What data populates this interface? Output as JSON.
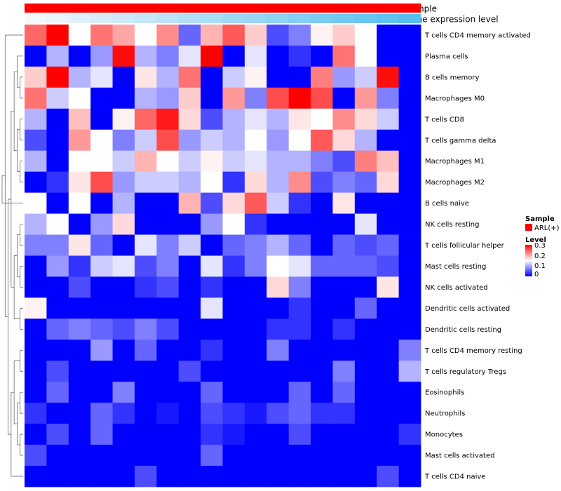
{
  "chart_data": {
    "type": "heatmap",
    "annotations": [
      {
        "name": "Sample",
        "gradient": [
          "#ff0000",
          "#ff0000"
        ]
      },
      {
        "name": "Gene expression level",
        "gradient": [
          "#f4f7fb",
          "#56bff0"
        ]
      }
    ],
    "rows": [
      "T cells CD4 memory activated",
      "Plasma cells",
      "B cells memory",
      "Macrophages M0",
      "T cells CD8",
      "T cells gamma delta",
      "Macrophages M1",
      "Macrophages M2",
      "B cells naive",
      "NK cells resting",
      "T cells follicular helper",
      "Mast cells resting",
      "NK cells activated",
      "Dendritic cells activated",
      "Dendritic cells resting",
      "T cells CD4 memory resting",
      "T cells regulatory  Tregs",
      "Eosinophils",
      "Neutrophils",
      "Monocytes",
      "Mast cells activated",
      "T cells CD4 naive"
    ],
    "n_columns": 18,
    "values": [
      [
        0.22,
        0.3,
        0.1,
        0.21,
        0.17,
        0.1,
        0.19,
        0.04,
        0.16,
        0.23,
        0.14,
        0.03,
        0.05,
        0.11,
        0.14,
        0.1,
        0.0,
        0.0
      ],
      [
        0.0,
        0.07,
        0.0,
        0.06,
        0.29,
        0.07,
        0.05,
        0.09,
        0.3,
        0.0,
        0.09,
        0.0,
        0.02,
        0.0,
        0.21,
        0.1,
        0.0,
        0.0
      ],
      [
        0.14,
        0.3,
        0.07,
        0.09,
        0.0,
        0.12,
        0.07,
        0.21,
        0.0,
        0.08,
        0.11,
        0.0,
        0.0,
        0.2,
        0.06,
        0.08,
        0.29,
        0.0
      ],
      [
        0.21,
        0.08,
        0.1,
        0.0,
        0.0,
        0.07,
        0.06,
        0.14,
        0.0,
        0.18,
        0.05,
        0.24,
        0.3,
        0.24,
        0.0,
        0.18,
        0.05,
        0.0
      ],
      [
        0.07,
        0.0,
        0.15,
        0.0,
        0.11,
        0.22,
        0.28,
        0.13,
        0.03,
        0.07,
        0.09,
        0.07,
        0.12,
        0.1,
        0.19,
        0.13,
        0.08,
        0.0
      ],
      [
        0.03,
        0.0,
        0.18,
        0.1,
        0.05,
        0.08,
        0.24,
        0.06,
        0.08,
        0.07,
        0.1,
        0.06,
        0.1,
        0.23,
        0.13,
        0.07,
        0.0,
        0.0
      ],
      [
        0.07,
        0.0,
        0.1,
        0.1,
        0.08,
        0.16,
        0.1,
        0.08,
        0.11,
        0.08,
        0.09,
        0.07,
        0.07,
        0.05,
        0.03,
        0.2,
        0.15,
        0.0
      ],
      [
        0.0,
        0.02,
        0.12,
        0.24,
        0.06,
        0.08,
        0.08,
        0.07,
        0.1,
        0.02,
        0.13,
        0.07,
        0.19,
        0.03,
        0.05,
        0.04,
        0.13,
        0.0
      ],
      [
        0.1,
        0.0,
        0.1,
        0.0,
        0.07,
        0.0,
        0.0,
        0.16,
        0.03,
        0.13,
        0.23,
        0.08,
        0.02,
        0.0,
        0.12,
        0.0,
        0.0,
        0.0
      ],
      [
        0.07,
        0.1,
        0.0,
        0.06,
        0.13,
        0.0,
        0.0,
        0.0,
        0.06,
        0.1,
        0.02,
        0.0,
        0.0,
        0.0,
        0.0,
        0.09,
        0.0,
        0.0
      ],
      [
        0.05,
        0.05,
        0.12,
        0.04,
        0.0,
        0.09,
        0.05,
        0.08,
        0.0,
        0.04,
        0.05,
        0.07,
        0.04,
        0.0,
        0.04,
        0.03,
        0.04,
        0.0
      ],
      [
        0.0,
        0.06,
        0.02,
        0.08,
        0.09,
        0.03,
        0.05,
        0.0,
        0.09,
        0.02,
        0.05,
        0.1,
        0.09,
        0.04,
        0.04,
        0.04,
        0.03,
        0.0
      ],
      [
        0.0,
        0.0,
        0.03,
        0.0,
        0.0,
        0.02,
        0.03,
        0.0,
        0.02,
        0.0,
        0.0,
        0.13,
        0.05,
        0.0,
        0.0,
        0.0,
        0.12,
        0.0
      ],
      [
        0.11,
        0.0,
        0.0,
        0.0,
        0.0,
        0.0,
        0.0,
        0.0,
        0.09,
        0.0,
        0.0,
        0.0,
        0.02,
        0.0,
        0.0,
        0.04,
        0.0,
        0.0
      ],
      [
        0.0,
        0.04,
        0.05,
        0.04,
        0.03,
        0.05,
        0.03,
        0.0,
        0.0,
        0.0,
        0.0,
        0.02,
        0.02,
        0.0,
        0.02,
        0.0,
        0.0,
        0.0
      ],
      [
        0.0,
        0.0,
        0.0,
        0.06,
        0.0,
        0.04,
        0.0,
        0.0,
        0.02,
        0.0,
        0.0,
        0.05,
        0.0,
        0.0,
        0.0,
        0.0,
        0.0,
        0.05
      ],
      [
        0.0,
        0.03,
        0.0,
        0.0,
        0.0,
        0.0,
        0.0,
        0.03,
        0.0,
        0.0,
        0.0,
        0.0,
        0.0,
        0.0,
        0.05,
        0.0,
        0.0,
        0.07
      ],
      [
        0.0,
        0.04,
        0.0,
        0.0,
        0.05,
        0.0,
        0.0,
        0.0,
        0.04,
        0.0,
        0.0,
        0.0,
        0.04,
        0.0,
        0.04,
        0.0,
        0.0,
        0.0
      ],
      [
        0.02,
        0.0,
        0.0,
        0.04,
        0.02,
        0.0,
        0.01,
        0.0,
        0.03,
        0.02,
        0.01,
        0.03,
        0.04,
        0.02,
        0.02,
        0.0,
        0.0,
        0.0
      ],
      [
        0.0,
        0.03,
        0.0,
        0.04,
        0.0,
        0.0,
        0.0,
        0.0,
        0.02,
        0.01,
        0.0,
        0.0,
        0.03,
        0.0,
        0.0,
        0.0,
        0.0,
        0.02
      ],
      [
        0.03,
        0.0,
        0.0,
        0.0,
        0.0,
        0.0,
        0.0,
        0.0,
        0.04,
        0.0,
        0.0,
        0.0,
        0.0,
        0.0,
        0.0,
        0.0,
        0.0,
        0.0
      ],
      [
        0.0,
        0.0,
        0.0,
        0.0,
        0.0,
        0.03,
        0.0,
        0.0,
        0.0,
        0.0,
        0.0,
        0.0,
        0.0,
        0.0,
        0.0,
        0.0,
        0.03,
        0.0
      ]
    ],
    "color_scale": {
      "min": 0,
      "mid": 0.1,
      "max": 0.3,
      "colors": [
        "#0000ff",
        "#ffffff",
        "#ff0000"
      ]
    },
    "row_dendrogram": [
      [
        6,
        7
      ],
      [
        4,
        5
      ],
      [
        22,
        23
      ],
      [
        2,
        3
      ],
      [
        1,
        25
      ],
      [
        26,
        24
      ],
      [
        9,
        10
      ],
      [
        11,
        12
      ],
      [
        28,
        29
      ],
      [
        13,
        14
      ],
      [
        30,
        31
      ],
      [
        27,
        32
      ],
      [
        15,
        16
      ],
      [
        17,
        18
      ],
      [
        19,
        20
      ],
      [
        35,
        36
      ],
      [
        34,
        37
      ],
      [
        38,
        21
      ],
      [
        33,
        39
      ],
      [
        0,
        40
      ],
      [
        8,
        41
      ]
    ],
    "legends": [
      {
        "title": "Sample",
        "items": [
          {
            "label": "ARL(+)",
            "color": "#ff0000"
          }
        ]
      },
      {
        "title": "Level",
        "ticks": [
          "0.3",
          "0.2",
          "0.1",
          "0"
        ]
      }
    ]
  }
}
